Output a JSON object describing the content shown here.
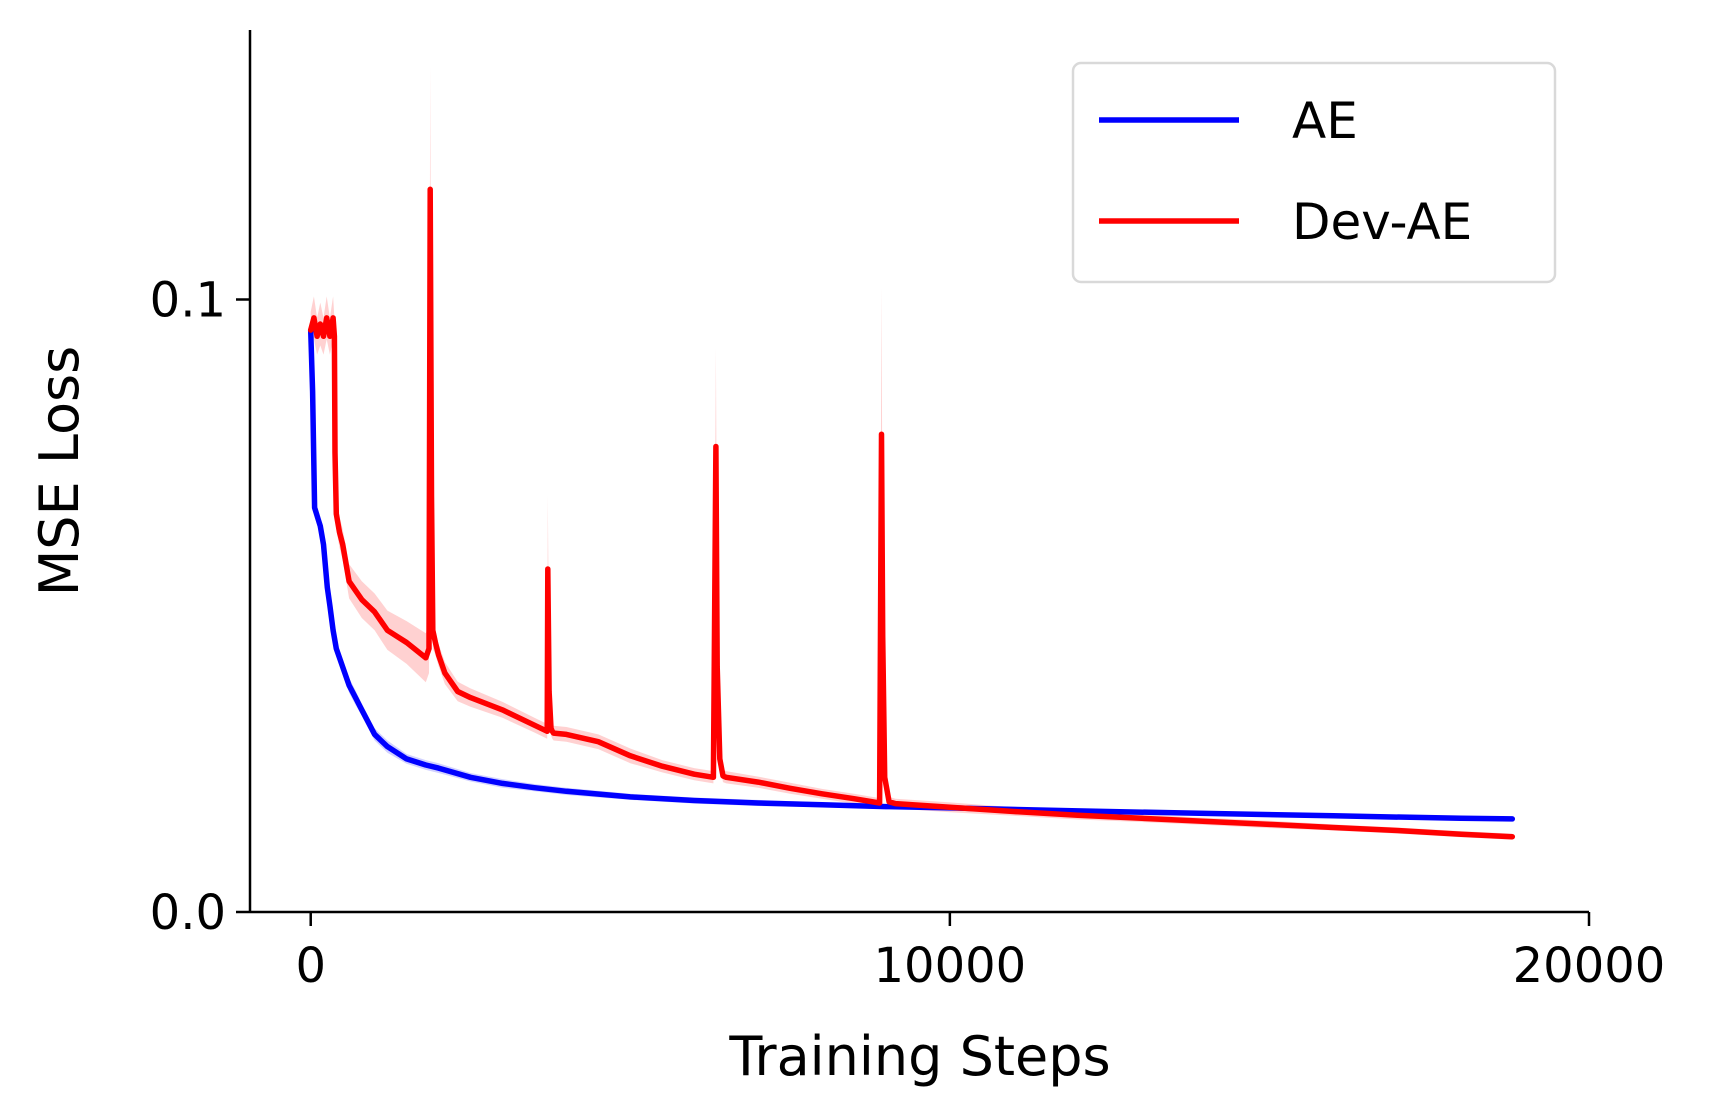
{
  "chart_data": {
    "type": "line",
    "title": "",
    "xlabel": "Training Steps",
    "ylabel": "MSE Loss",
    "xlim": [
      -950,
      20000
    ],
    "ylim": [
      0.0,
      0.144
    ],
    "xticks": [
      0,
      10000,
      20000
    ],
    "xtick_labels": [
      "0",
      "10000",
      "20000"
    ],
    "yticks": [
      0.0,
      0.1
    ],
    "ytick_labels": [
      "0.0",
      "0.1"
    ],
    "grid": false,
    "legend_position": "top-right",
    "spines": [
      "left",
      "bottom"
    ],
    "series": [
      {
        "name": "AE",
        "color": "#0000ff",
        "band_color": "#ccccff",
        "x": [
          0,
          30,
          60,
          120,
          150,
          200,
          260,
          300,
          350,
          400,
          500,
          600,
          700,
          800,
          1000,
          1200,
          1500,
          1800,
          2000,
          2500,
          3000,
          3500,
          4000,
          5000,
          6000,
          7000,
          8000,
          9000,
          10000,
          12000,
          14000,
          16000,
          18000,
          18800
        ],
        "y": [
          0.095,
          0.085,
          0.066,
          0.064,
          0.063,
          0.06,
          0.053,
          0.05,
          0.046,
          0.043,
          0.04,
          0.037,
          0.035,
          0.033,
          0.029,
          0.027,
          0.025,
          0.024,
          0.0235,
          0.022,
          0.021,
          0.0203,
          0.0197,
          0.0188,
          0.0182,
          0.0178,
          0.0175,
          0.0172,
          0.017,
          0.0165,
          0.0161,
          0.0157,
          0.0153,
          0.0152
        ],
        "band": [
          0.0015,
          0.0015,
          0.0015,
          0.0015,
          0.0015,
          0.0015,
          0.0015,
          0.0015,
          0.0015,
          0.0012,
          0.0012,
          0.0012,
          0.0012,
          0.001,
          0.001,
          0.001,
          0.0008,
          0.0008,
          0.0008,
          0.0007,
          0.0007,
          0.0006,
          0.0006,
          0.0005,
          0.0005,
          0.0005,
          0.0004,
          0.0004,
          0.0004,
          0.0003,
          0.0003,
          0.0003,
          0.0003,
          0.0003
        ]
      },
      {
        "name": "Dev-AE",
        "color": "#ff0000",
        "band_color": "#ffcccc",
        "x": [
          0,
          50,
          100,
          150,
          200,
          250,
          300,
          350,
          370,
          380,
          400,
          450,
          500,
          600,
          800,
          1000,
          1200,
          1500,
          1800,
          1850,
          1870,
          1890,
          1910,
          1950,
          2000,
          2100,
          2300,
          2500,
          3000,
          3500,
          3700,
          3710,
          3730,
          3760,
          3780,
          3800,
          4000,
          4500,
          5000,
          5500,
          6000,
          6300,
          6340,
          6360,
          6400,
          6450,
          6500,
          7000,
          7500,
          8000,
          8500,
          8900,
          8930,
          8950,
          8980,
          9050,
          9150,
          10000,
          11000,
          12000,
          13000,
          14000,
          15000,
          16000,
          17000,
          18000,
          18800
        ],
        "y": [
          0.095,
          0.097,
          0.094,
          0.096,
          0.094,
          0.097,
          0.094,
          0.097,
          0.094,
          0.075,
          0.065,
          0.062,
          0.06,
          0.054,
          0.051,
          0.049,
          0.046,
          0.044,
          0.0415,
          0.043,
          0.118,
          0.068,
          0.046,
          0.044,
          0.042,
          0.039,
          0.036,
          0.035,
          0.033,
          0.0305,
          0.0295,
          0.056,
          0.036,
          0.03,
          0.0295,
          0.0292,
          0.029,
          0.0278,
          0.0255,
          0.0238,
          0.0225,
          0.022,
          0.076,
          0.04,
          0.025,
          0.0222,
          0.022,
          0.0212,
          0.0202,
          0.0193,
          0.0185,
          0.0178,
          0.078,
          0.045,
          0.022,
          0.018,
          0.0177,
          0.0171,
          0.0164,
          0.0158,
          0.0153,
          0.0148,
          0.0143,
          0.0138,
          0.0133,
          0.0127,
          0.0123
        ],
        "band": [
          0.003,
          0.0035,
          0.003,
          0.0035,
          0.003,
          0.0035,
          0.003,
          0.0035,
          0.003,
          0.0025,
          0.0025,
          0.0025,
          0.0025,
          0.0028,
          0.003,
          0.003,
          0.0032,
          0.0035,
          0.004,
          0.004,
          0.02,
          0.01,
          0.003,
          0.002,
          0.0018,
          0.0018,
          0.0016,
          0.0015,
          0.0013,
          0.0012,
          0.0012,
          0.012,
          0.004,
          0.0012,
          0.0012,
          0.0012,
          0.0012,
          0.0012,
          0.0012,
          0.001,
          0.001,
          0.001,
          0.016,
          0.006,
          0.001,
          0.001,
          0.001,
          0.0009,
          0.0009,
          0.0008,
          0.0008,
          0.0008,
          0.024,
          0.008,
          0.001,
          0.0008,
          0.0008,
          0.0008,
          0.0007,
          0.0007,
          0.0006,
          0.0006,
          0.0006,
          0.0005,
          0.0005,
          0.0005,
          0.0005
        ]
      }
    ]
  }
}
